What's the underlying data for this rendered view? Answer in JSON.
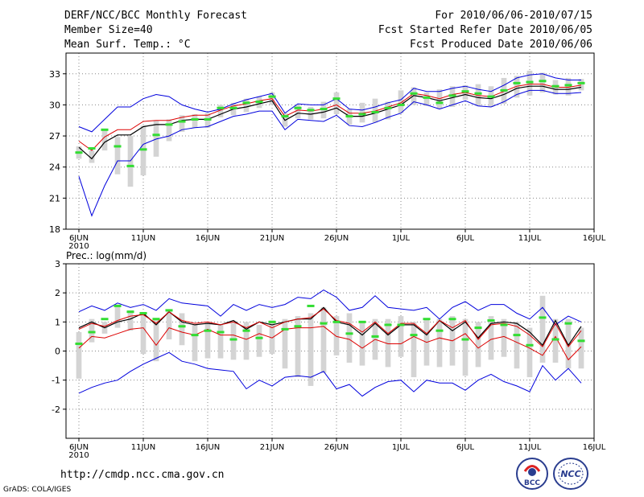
{
  "header": {
    "title": "DERF/NCC/BCC Monthly Forecast",
    "member_size": "Member Size=40",
    "variable": "Mean Surf. Temp.: °C",
    "period": "For 2010/06/06-2010/07/15",
    "started": "Fcst Started Refer Date 2010/06/05",
    "produced": "Fcst Produced Date 2010/06/06"
  },
  "footer": {
    "url": "http://cmdp.ncc.cma.gov.cn",
    "credit": "GrADS: COLA/IGES",
    "logo_left_text": "BCC",
    "logo_right_text": "NCC"
  },
  "colors": {
    "envelope": "#0000dd",
    "mean": "#000000",
    "median": "#dd0000",
    "observed": "#33dd33",
    "box": "#d4d4d4"
  },
  "chart_data": [
    {
      "type": "line",
      "name": "temperature",
      "title": "Mean Surf. Temp.: °C",
      "x": [
        1,
        2,
        3,
        4,
        5,
        6,
        7,
        8,
        9,
        10,
        11,
        12,
        13,
        14,
        15,
        16,
        17,
        18,
        19,
        20,
        21,
        22,
        23,
        24,
        25,
        26,
        27,
        28,
        29,
        30,
        31,
        32,
        33,
        34,
        35,
        36,
        37,
        38,
        39,
        40
      ],
      "xticks": [
        {
          "x": 1,
          "label": "6JUN",
          "sub": "2010"
        },
        {
          "x": 6,
          "label": "11JUN"
        },
        {
          "x": 11,
          "label": "16JUN"
        },
        {
          "x": 16,
          "label": "21JUN"
        },
        {
          "x": 21,
          "label": "26JUN"
        },
        {
          "x": 26,
          "label": "1JUL"
        },
        {
          "x": 31,
          "label": "6JUL"
        },
        {
          "x": 36,
          "label": "11JUL"
        },
        {
          "x": 41,
          "label": "16JUL"
        }
      ],
      "xlim": [
        0,
        41
      ],
      "ylim": [
        18,
        35
      ],
      "yticks": [
        18,
        21,
        24,
        27,
        30,
        33
      ],
      "grid": true,
      "series": [
        {
          "name": "ensemble maximum",
          "role": "max",
          "values": [
            27.9,
            27.4,
            28.6,
            29.8,
            29.8,
            30.6,
            31.0,
            30.8,
            30.0,
            29.6,
            29.3,
            29.6,
            30.1,
            30.5,
            30.8,
            31.1,
            29.2,
            30.1,
            30.0,
            30.0,
            30.6,
            29.6,
            29.5,
            29.8,
            30.2,
            30.5,
            31.6,
            31.3,
            31.3,
            31.6,
            31.8,
            31.5,
            31.3,
            31.9,
            32.6,
            32.9,
            33.0,
            32.6,
            32.4,
            32.4
          ]
        },
        {
          "name": "ensemble mean",
          "role": "mean",
          "values": [
            25.9,
            24.8,
            26.4,
            27.1,
            27.1,
            27.9,
            28.1,
            28.1,
            28.5,
            28.6,
            28.6,
            29.1,
            29.6,
            29.8,
            30.1,
            30.4,
            28.5,
            29.2,
            29.1,
            29.3,
            29.7,
            28.9,
            28.9,
            29.2,
            29.6,
            30.0,
            30.9,
            30.7,
            30.4,
            30.7,
            31.0,
            30.7,
            30.6,
            31.0,
            31.6,
            31.8,
            31.8,
            31.5,
            31.5,
            31.7
          ]
        },
        {
          "name": "ensemble median",
          "role": "median",
          "values": [
            26.5,
            25.6,
            26.9,
            27.6,
            27.6,
            28.4,
            28.5,
            28.5,
            28.8,
            29.0,
            29.0,
            29.5,
            29.9,
            30.1,
            30.4,
            30.6,
            28.9,
            29.5,
            29.4,
            29.6,
            30.0,
            29.2,
            29.2,
            29.4,
            29.8,
            30.2,
            31.1,
            30.9,
            30.6,
            31.0,
            31.2,
            30.9,
            30.8,
            31.3,
            31.8,
            32.0,
            32.0,
            31.7,
            31.7,
            31.9
          ]
        },
        {
          "name": "ensemble minimum",
          "role": "min",
          "values": [
            23.1,
            19.3,
            22.2,
            24.6,
            24.6,
            26.2,
            26.7,
            27.0,
            27.6,
            27.8,
            27.9,
            28.4,
            28.9,
            29.1,
            29.4,
            29.4,
            27.6,
            28.6,
            28.5,
            28.4,
            29.0,
            28.0,
            27.9,
            28.3,
            28.8,
            29.2,
            30.3,
            30.0,
            29.6,
            30.0,
            30.4,
            29.9,
            29.8,
            30.3,
            31.0,
            31.4,
            31.4,
            31.1,
            31.1,
            31.2
          ]
        },
        {
          "name": "observed",
          "role": "observed",
          "values": [
            25.4,
            25.8,
            27.6,
            26.0,
            24.1,
            25.7,
            27.1,
            28.1,
            28.4,
            28.6,
            28.6,
            29.7,
            29.7,
            30.2,
            30.3,
            30.8,
            28.9,
            29.7,
            29.5,
            29.6,
            30.6,
            28.9,
            29.1,
            29.3,
            29.7,
            30.0,
            31.1,
            30.7,
            30.2,
            30.9,
            31.3,
            31.1,
            30.8,
            31.4,
            32.1,
            32.2,
            32.3,
            31.8,
            31.9,
            32.1
          ]
        }
      ],
      "boxes": [
        {
          "low": 24.8,
          "high": 26.0
        },
        {
          "low": 24.4,
          "high": 25.6
        },
        {
          "low": 25.6,
          "high": 27.7
        },
        {
          "low": 23.3,
          "high": 26.9
        },
        {
          "low": 22.1,
          "high": 27.0
        },
        {
          "low": 23.2,
          "high": 28.0
        },
        {
          "low": 25.0,
          "high": 28.5
        },
        {
          "low": 26.5,
          "high": 28.6
        },
        {
          "low": 27.4,
          "high": 29.0
        },
        {
          "low": 27.8,
          "high": 29.1
        },
        {
          "low": 27.8,
          "high": 29.2
        },
        {
          "low": 28.8,
          "high": 30.0
        },
        {
          "low": 29.0,
          "high": 30.2
        },
        {
          "low": 29.3,
          "high": 30.6
        },
        {
          "low": 29.7,
          "high": 30.8
        },
        {
          "low": 30.0,
          "high": 31.2
        },
        {
          "low": 27.9,
          "high": 29.2
        },
        {
          "low": 28.7,
          "high": 30.0
        },
        {
          "low": 28.6,
          "high": 29.8
        },
        {
          "low": 28.7,
          "high": 30.3
        },
        {
          "low": 29.1,
          "high": 31.2
        },
        {
          "low": 28.1,
          "high": 29.6
        },
        {
          "low": 28.3,
          "high": 30.2
        },
        {
          "low": 28.3,
          "high": 30.6
        },
        {
          "low": 28.6,
          "high": 30.3
        },
        {
          "low": 29.2,
          "high": 31.4
        },
        {
          "low": 30.0,
          "high": 31.7
        },
        {
          "low": 29.9,
          "high": 31.2
        },
        {
          "low": 29.6,
          "high": 31.5
        },
        {
          "low": 29.8,
          "high": 31.8
        },
        {
          "low": 30.5,
          "high": 31.9
        },
        {
          "low": 29.9,
          "high": 32.0
        },
        {
          "low": 29.8,
          "high": 31.8
        },
        {
          "low": 30.1,
          "high": 32.6
        },
        {
          "low": 30.7,
          "high": 32.8
        },
        {
          "low": 30.9,
          "high": 33.3
        },
        {
          "low": 31.2,
          "high": 33.1
        },
        {
          "low": 31.0,
          "high": 32.4
        },
        {
          "low": 30.9,
          "high": 32.6
        },
        {
          "low": 31.4,
          "high": 32.5
        }
      ]
    },
    {
      "type": "line",
      "name": "precipitation",
      "title": "Prec.: log(mm/d)",
      "x": [
        1,
        2,
        3,
        4,
        5,
        6,
        7,
        8,
        9,
        10,
        11,
        12,
        13,
        14,
        15,
        16,
        17,
        18,
        19,
        20,
        21,
        22,
        23,
        24,
        25,
        26,
        27,
        28,
        29,
        30,
        31,
        32,
        33,
        34,
        35,
        36,
        37,
        38,
        39,
        40
      ],
      "xticks": [
        {
          "x": 1,
          "label": "6JUN",
          "sub": "2010"
        },
        {
          "x": 6,
          "label": "11JUN"
        },
        {
          "x": 11,
          "label": "16JUN"
        },
        {
          "x": 16,
          "label": "21JUN"
        },
        {
          "x": 21,
          "label": "26JUN"
        },
        {
          "x": 26,
          "label": "1JUL"
        },
        {
          "x": 31,
          "label": "6JUL"
        },
        {
          "x": 36,
          "label": "11JUL"
        },
        {
          "x": 41,
          "label": "16JUL"
        }
      ],
      "xlim": [
        0,
        41
      ],
      "ylim": [
        -3,
        3
      ],
      "yticks": [
        -2,
        -1,
        0,
        1,
        2,
        3
      ],
      "grid": true,
      "series": [
        {
          "name": "ensemble maximum",
          "role": "max",
          "values": [
            1.35,
            1.55,
            1.4,
            1.65,
            1.5,
            1.6,
            1.4,
            1.8,
            1.65,
            1.6,
            1.55,
            1.2,
            1.6,
            1.4,
            1.6,
            1.5,
            1.6,
            1.85,
            1.8,
            2.1,
            1.85,
            1.4,
            1.5,
            1.9,
            1.5,
            1.45,
            1.4,
            1.5,
            1.1,
            1.5,
            1.7,
            1.4,
            1.6,
            1.6,
            1.3,
            1.1,
            1.5,
            0.9,
            1.2,
            1.0
          ]
        },
        {
          "name": "ensemble mean",
          "role": "mean",
          "values": [
            0.8,
            1.0,
            0.8,
            1.0,
            1.1,
            1.3,
            0.9,
            1.35,
            1.0,
            0.9,
            0.95,
            0.9,
            1.05,
            0.75,
            1.0,
            0.9,
            1.0,
            1.1,
            1.1,
            1.5,
            1.0,
            0.9,
            0.55,
            0.95,
            0.55,
            0.9,
            0.9,
            0.55,
            1.05,
            0.7,
            1.0,
            0.45,
            0.95,
            1.0,
            0.95,
            0.65,
            0.2,
            1.05,
            0.2,
            0.85
          ]
        },
        {
          "name": "ensemble median",
          "role": "median",
          "values": [
            0.75,
            0.95,
            0.85,
            1.05,
            1.2,
            1.25,
            0.95,
            1.35,
            1.05,
            0.95,
            1.0,
            0.9,
            1.0,
            0.8,
            1.0,
            0.8,
            1.0,
            1.1,
            1.15,
            1.45,
            1.05,
            0.95,
            0.65,
            1.0,
            0.6,
            0.95,
            0.95,
            0.6,
            1.05,
            0.8,
            1.05,
            0.4,
            0.9,
            0.95,
            0.85,
            0.55,
            0.15,
            0.95,
            0.15,
            0.7
          ]
        },
        {
          "name": "ensemble minimum",
          "role": "min",
          "values": [
            -1.45,
            -1.25,
            -1.1,
            -1.0,
            -0.7,
            -0.45,
            -0.25,
            -0.05,
            -0.35,
            -0.45,
            -0.6,
            -0.65,
            -0.7,
            -1.3,
            -1.0,
            -1.2,
            -0.9,
            -0.85,
            -0.9,
            -0.7,
            -1.3,
            -1.15,
            -1.55,
            -1.25,
            -1.05,
            -1.0,
            -1.4,
            -1.0,
            -1.1,
            -1.1,
            -1.35,
            -1.0,
            -0.8,
            -1.05,
            -1.2,
            -1.4,
            -0.5,
            -1.0,
            -0.6,
            -1.1
          ]
        },
        {
          "name": "ensemble 25th-percentile",
          "role": "lower",
          "values": [
            0.1,
            0.5,
            0.45,
            0.6,
            0.75,
            0.8,
            0.2,
            0.8,
            0.65,
            0.55,
            0.75,
            0.55,
            0.55,
            0.4,
            0.6,
            0.45,
            0.75,
            0.8,
            0.8,
            0.85,
            0.5,
            0.4,
            0.1,
            0.4,
            0.25,
            0.25,
            0.5,
            0.3,
            0.45,
            0.35,
            0.6,
            0.1,
            0.4,
            0.5,
            0.3,
            0.1,
            -0.15,
            0.5,
            -0.3,
            0.15
          ]
        },
        {
          "name": "observed",
          "role": "observed",
          "values": [
            0.25,
            0.65,
            1.1,
            1.55,
            1.35,
            1.3,
            1.1,
            1.4,
            0.85,
            0.55,
            0.7,
            0.65,
            0.4,
            0.7,
            0.45,
            1.0,
            0.75,
            0.85,
            1.55,
            0.95,
            1.0,
            0.6,
            1.0,
            0.5,
            0.9,
            0.9,
            0.55,
            1.1,
            0.7,
            1.1,
            0.4,
            0.8,
            1.05,
            0.9,
            0.55,
            0.2,
            1.15,
            0.4,
            0.95,
            0.35
          ]
        }
      ],
      "boxes": [
        {
          "low": -0.95,
          "high": 0.65
        },
        {
          "low": 0.3,
          "high": 1.1
        },
        {
          "low": 0.6,
          "high": 1.0
        },
        {
          "low": 0.8,
          "high": 1.6
        },
        {
          "low": 0.7,
          "high": 1.4
        },
        {
          "low": -0.1,
          "high": 1.3
        },
        {
          "low": -0.35,
          "high": 1.1
        },
        {
          "low": 0.4,
          "high": 1.4
        },
        {
          "low": 0.2,
          "high": 1.3
        },
        {
          "low": -0.35,
          "high": 0.9
        },
        {
          "low": -0.25,
          "high": 1.0
        },
        {
          "low": -0.25,
          "high": 0.9
        },
        {
          "low": -0.3,
          "high": 1.0
        },
        {
          "low": -0.3,
          "high": 1.0
        },
        {
          "low": -0.2,
          "high": 0.9
        },
        {
          "low": -0.1,
          "high": 1.05
        },
        {
          "low": -0.6,
          "high": 1.1
        },
        {
          "low": -0.9,
          "high": 1.2
        },
        {
          "low": -1.2,
          "high": 1.3
        },
        {
          "low": -0.75,
          "high": 1.5
        },
        {
          "low": -0.15,
          "high": 1.2
        },
        {
          "low": -0.4,
          "high": 1.3
        },
        {
          "low": -0.5,
          "high": 1.0
        },
        {
          "low": -0.3,
          "high": 1.1
        },
        {
          "low": -0.55,
          "high": 1.1
        },
        {
          "low": -0.2,
          "high": 1.2
        },
        {
          "low": -0.9,
          "high": 1.0
        },
        {
          "low": -0.5,
          "high": 1.1
        },
        {
          "low": -0.55,
          "high": 1.1
        },
        {
          "low": -0.5,
          "high": 1.2
        },
        {
          "low": -0.85,
          "high": 1.1
        },
        {
          "low": -0.55,
          "high": 1.0
        },
        {
          "low": -0.3,
          "high": 1.2
        },
        {
          "low": -0.2,
          "high": 1.1
        },
        {
          "low": -0.6,
          "high": 1.0
        },
        {
          "low": -0.9,
          "high": 0.8
        },
        {
          "low": -0.4,
          "high": 1.9
        },
        {
          "low": -0.4,
          "high": 1.1
        },
        {
          "low": -0.6,
          "high": 1.1
        },
        {
          "low": -0.6,
          "high": 0.8
        }
      ]
    }
  ]
}
